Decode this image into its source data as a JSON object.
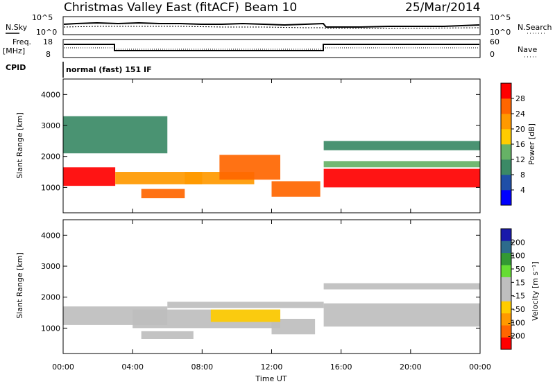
{
  "header": {
    "station": "Christmas Valley East (fitACF)",
    "beam": "Beam 10",
    "date": "25/Mar/2014"
  },
  "summary_panels": {
    "nsky_label": "N.Sky",
    "nsearch_label": "N.Search",
    "noise_ticks": [
      "10^5",
      "10^0"
    ],
    "freq_label_1": "Freq.",
    "freq_label_2": "[MHz]",
    "freq_ticks": [
      "18",
      "8"
    ],
    "nave_label": "Nave",
    "nave_ticks": [
      "60",
      "0"
    ],
    "cpid_label": "CPID",
    "cpid_text": "normal (fast) 151 IF"
  },
  "colors": {
    "power_scale": [
      "#0000ff",
      "#1f4fa8",
      "#3b8a66",
      "#66b266",
      "#ffcc00",
      "#ff9900",
      "#ff6600",
      "#ff0000"
    ],
    "velocity_scale": [
      "#ff0000",
      "#ff6600",
      "#ff9900",
      "#ffcc00",
      "#bebebe",
      "#bebebe",
      "#66dd33",
      "#339933",
      "#2d6b8c",
      "#1a1aaa"
    ]
  },
  "chart_data": [
    {
      "type": "heatmap",
      "panel": "power",
      "ylabel": "Slant Range [km]",
      "ylim": [
        180,
        4500
      ],
      "yticks": [
        "1000",
        "2000",
        "3000",
        "4000"
      ],
      "colorbar_label": "Power [dB]",
      "colorbar_ticks": [
        "4",
        "8",
        "12",
        "16",
        "20",
        "24",
        "28"
      ],
      "colorbar_range": [
        0,
        30
      ],
      "bands": [
        {
          "t0": 0.0,
          "t1": 3.0,
          "r0": 1050,
          "r1": 1650,
          "value": 28
        },
        {
          "t0": 3.0,
          "t1": 8.0,
          "r0": 1100,
          "r1": 1500,
          "value": 22
        },
        {
          "t0": 4.5,
          "t1": 7.0,
          "r0": 650,
          "r1": 950,
          "value": 26
        },
        {
          "t0": 7.0,
          "t1": 11.0,
          "r0": 1100,
          "r1": 1500,
          "value": 20
        },
        {
          "t0": 9.0,
          "t1": 12.5,
          "r0": 1250,
          "r1": 2050,
          "value": 24
        },
        {
          "t0": 12.0,
          "t1": 14.8,
          "r0": 700,
          "r1": 1200,
          "value": 24
        },
        {
          "t0": 15.0,
          "t1": 24.0,
          "r0": 1000,
          "r1": 1600,
          "value": 27
        },
        {
          "t0": 15.0,
          "t1": 24.0,
          "r0": 1650,
          "r1": 1850,
          "value": 14
        },
        {
          "t0": 15.0,
          "t1": 24.0,
          "r0": 2200,
          "r1": 2500,
          "value": 10
        },
        {
          "t0": 0.0,
          "t1": 6.0,
          "r0": 2100,
          "r1": 3300,
          "value": 11
        }
      ]
    },
    {
      "type": "heatmap",
      "panel": "velocity",
      "xlabel": "Time UT",
      "xticks": [
        "00:00",
        "04:00",
        "08:00",
        "12:00",
        "16:00",
        "20:00",
        "00:00"
      ],
      "xlim": [
        0,
        24
      ],
      "ylabel": "Slant Range [km]",
      "ylim": [
        180,
        4500
      ],
      "yticks": [
        "1000",
        "2000",
        "3000",
        "4000"
      ],
      "colorbar_label": "Velocity [m s⁻¹]",
      "colorbar_ticks": [
        "-200",
        "-100",
        "-50",
        "-15",
        "15",
        "50",
        "100",
        "200"
      ],
      "colorbar_range": [
        -250,
        250
      ],
      "bands": [
        {
          "t0": 0.0,
          "t1": 6.0,
          "r0": 1100,
          "r1": 1700,
          "value": 0
        },
        {
          "t0": 6.0,
          "t1": 15.0,
          "r0": 1650,
          "r1": 1850,
          "value": 0
        },
        {
          "t0": 4.0,
          "t1": 12.5,
          "r0": 1000,
          "r1": 1600,
          "value": 35
        },
        {
          "t0": 4.5,
          "t1": 7.5,
          "r0": 650,
          "r1": 900,
          "value": 35
        },
        {
          "t0": 12.0,
          "t1": 14.5,
          "r0": 800,
          "r1": 1300,
          "value": 35
        },
        {
          "t0": 15.0,
          "t1": 24.0,
          "r0": 1050,
          "r1": 1800,
          "value": 0
        },
        {
          "t0": 15.0,
          "t1": 24.0,
          "r0": 2250,
          "r1": 2450,
          "value": 0
        },
        {
          "t0": 8.5,
          "t1": 12.5,
          "r0": 1200,
          "r1": 1600,
          "value": -60
        }
      ]
    }
  ]
}
